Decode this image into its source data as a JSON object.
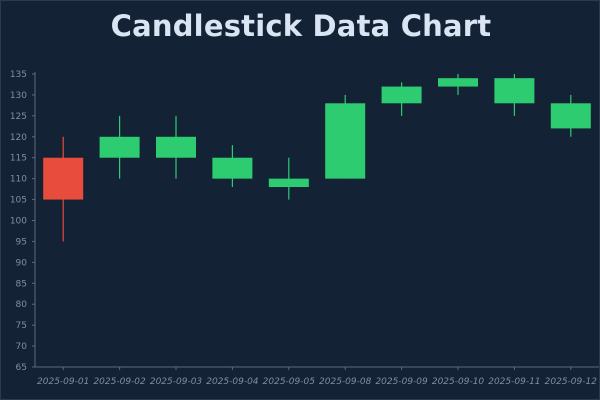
{
  "chart_data": {
    "type": "candlestick",
    "title": "Candlestick Data Chart",
    "xlabel": "",
    "ylabel": "",
    "ylim": [
      65,
      135
    ],
    "y_ticks": [
      65,
      70,
      75,
      80,
      85,
      90,
      95,
      100,
      105,
      110,
      115,
      120,
      125,
      130,
      135
    ],
    "grid": false,
    "colors": {
      "up": "#2ecc71",
      "down": "#e74c3c",
      "background": "#132235",
      "axis": "#5d6b7c"
    },
    "categories": [
      "2025-09-01",
      "2025-09-02",
      "2025-09-03",
      "2025-09-04",
      "2025-09-05",
      "2025-09-08",
      "2025-09-09",
      "2025-09-10",
      "2025-09-11",
      "2025-09-12"
    ],
    "series": [
      {
        "open": [
          115,
          115,
          115,
          110,
          108,
          110,
          128,
          132,
          128,
          122
        ],
        "high": [
          120,
          125,
          125,
          118,
          115,
          130,
          133,
          135,
          135,
          130
        ],
        "low": [
          95,
          110,
          110,
          108,
          105,
          110,
          125,
          130,
          125,
          120
        ],
        "close": [
          105,
          120,
          120,
          115,
          110,
          128,
          132,
          134,
          134,
          128
        ]
      }
    ]
  }
}
